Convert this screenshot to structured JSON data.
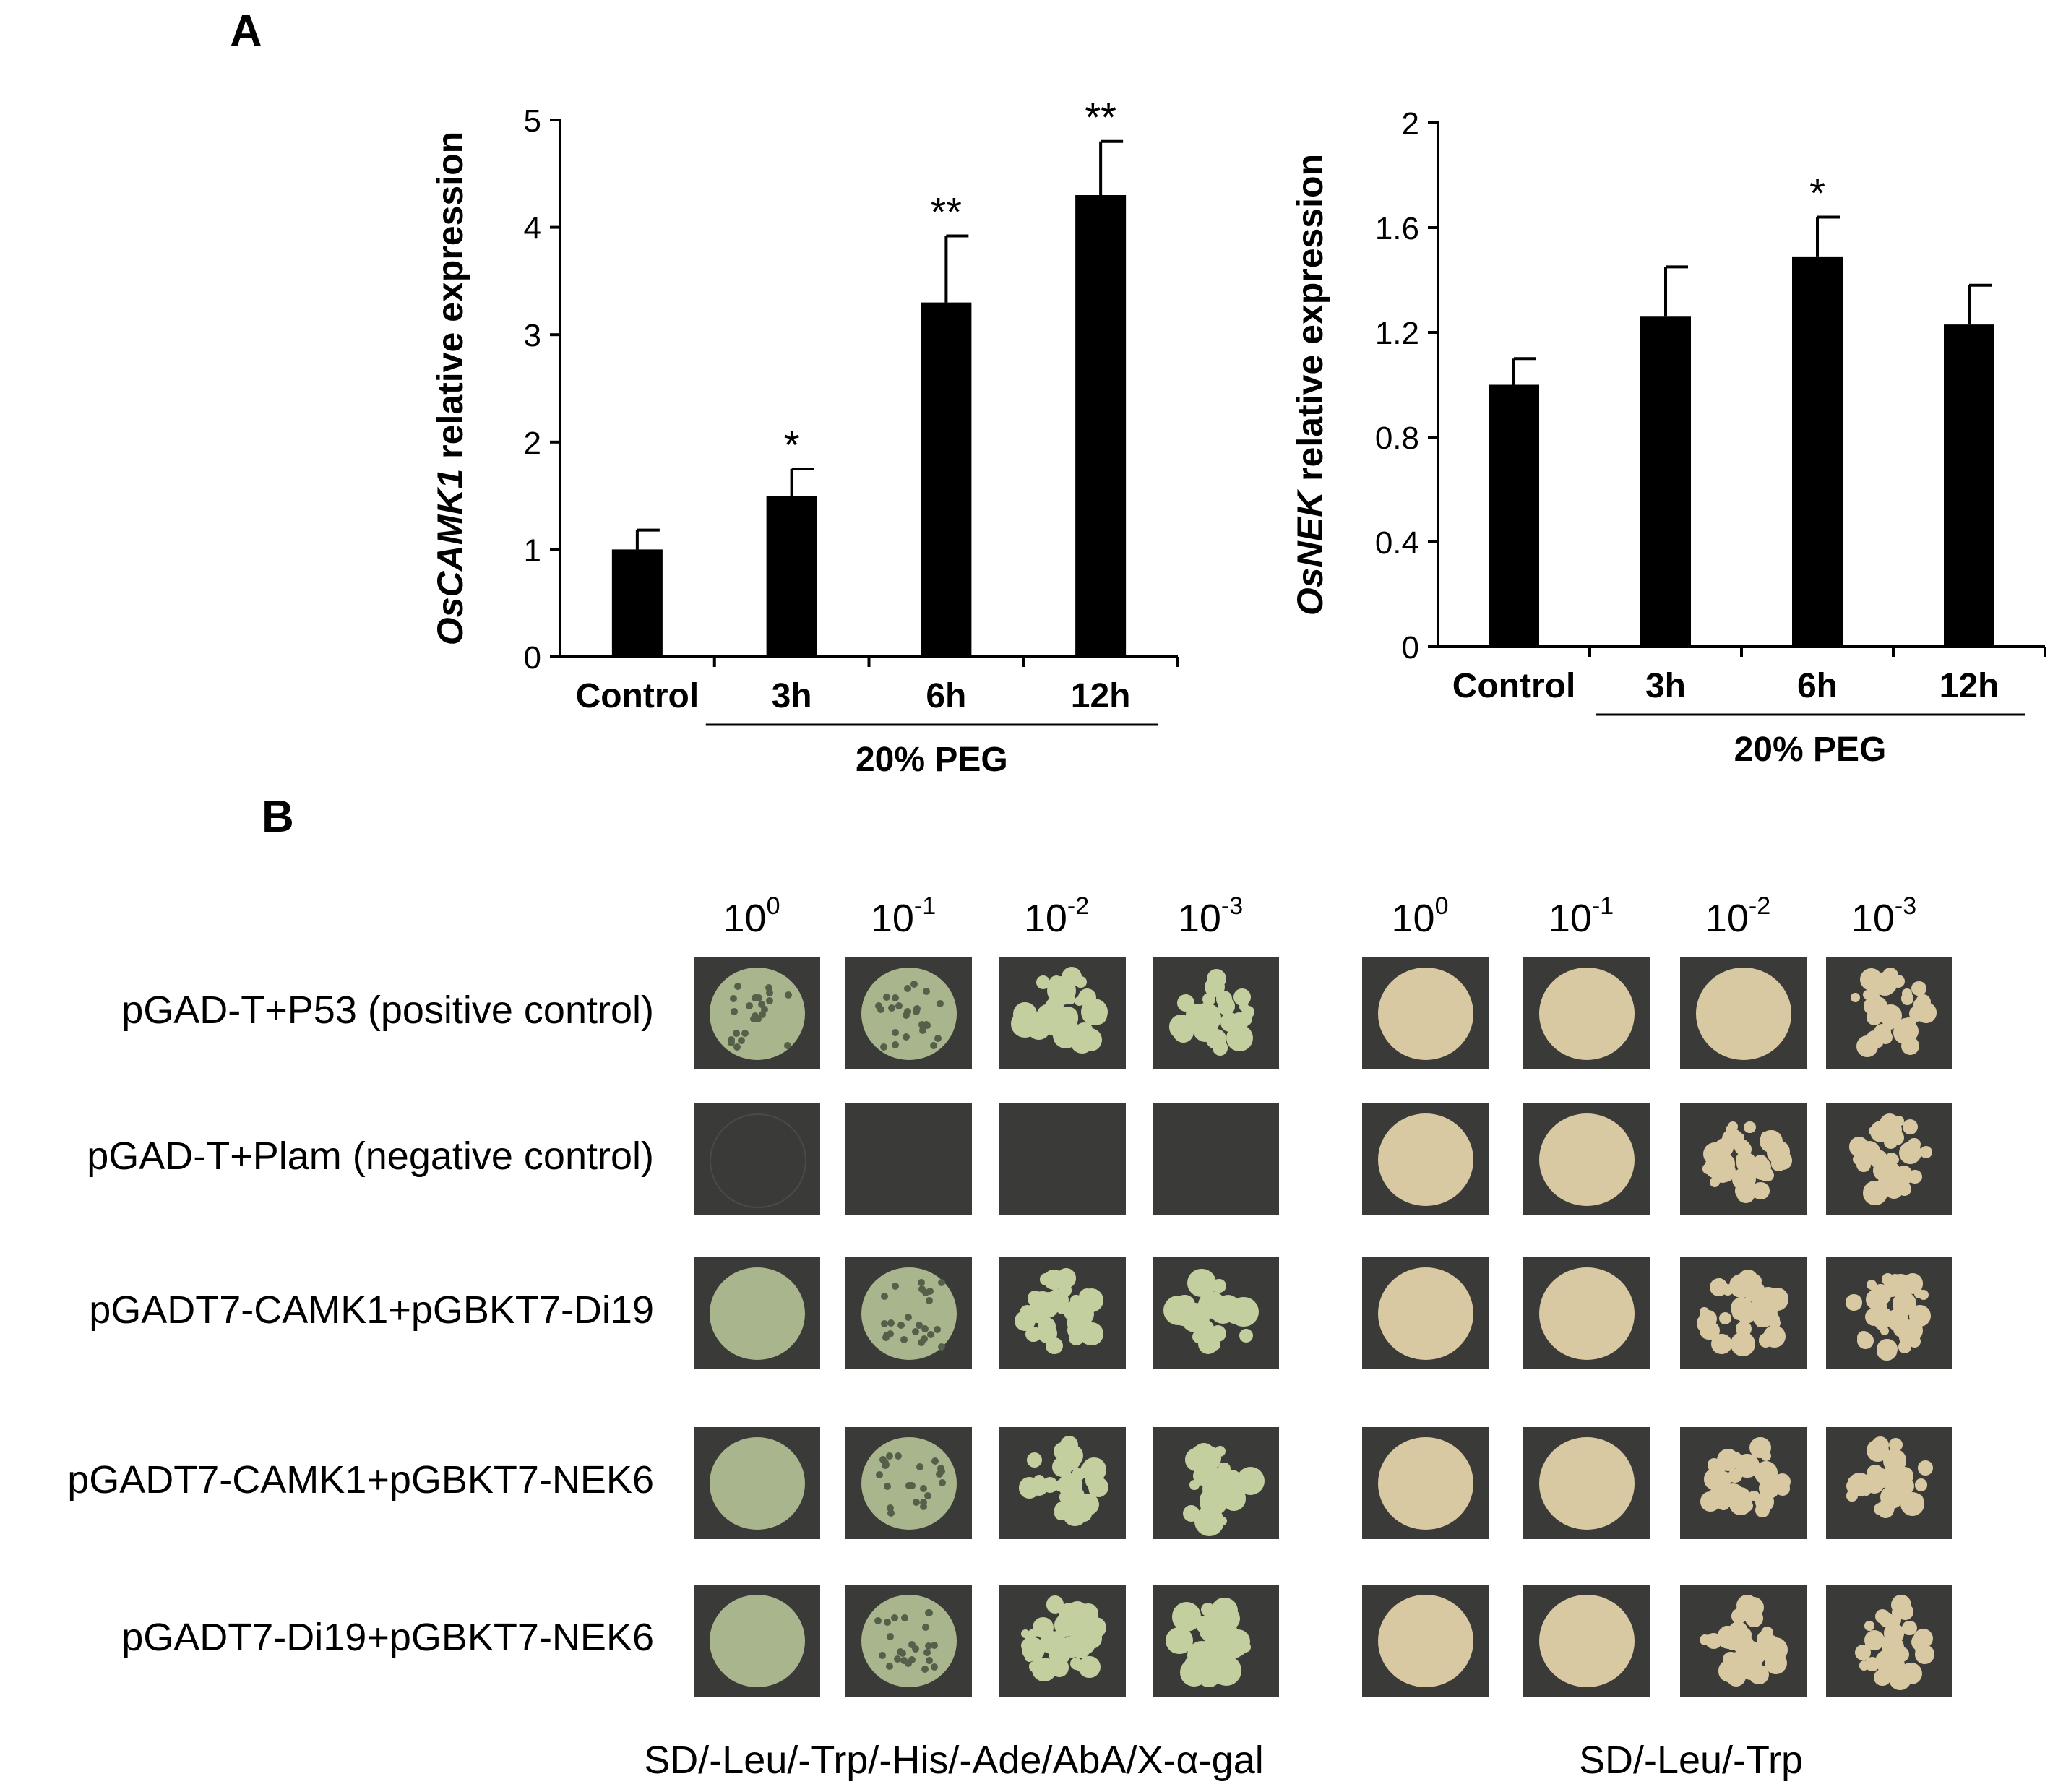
{
  "panels": {
    "a": "A",
    "b": "B"
  },
  "chart_data": [
    {
      "type": "bar",
      "ylabel_italic": "OsCAMK1",
      "ylabel_rest": " relative expression",
      "categories": [
        "Control",
        "3h",
        "6h",
        "12h"
      ],
      "values": [
        1.0,
        1.5,
        3.3,
        4.3
      ],
      "errors": [
        0.18,
        0.25,
        0.62,
        0.5
      ],
      "significance": [
        "",
        "*",
        "**",
        "**"
      ],
      "ylim": [
        0,
        5
      ],
      "yticks": [
        "0",
        "1",
        "2",
        "3",
        "4",
        "5"
      ],
      "group_label": "20% PEG",
      "group_start_index": 1
    },
    {
      "type": "bar",
      "ylabel_italic": "OsNEK",
      "ylabel_rest": " relative expression",
      "categories": [
        "Control",
        "3h",
        "6h",
        "12h"
      ],
      "values": [
        1.0,
        1.26,
        1.49,
        1.23
      ],
      "errors": [
        0.1,
        0.19,
        0.15,
        0.15
      ],
      "significance": [
        "",
        "",
        "*",
        ""
      ],
      "ylim": [
        0,
        2
      ],
      "yticks": [
        "0",
        "0.4",
        "0.8",
        "1.2",
        "1.6",
        "2"
      ],
      "group_label": "20% PEG",
      "group_start_index": 1
    }
  ],
  "assay": {
    "dilutions": [
      {
        "base": "10",
        "exp": "0"
      },
      {
        "base": "10",
        "exp": "-1"
      },
      {
        "base": "10",
        "exp": "-2"
      },
      {
        "base": "10",
        "exp": "-3"
      }
    ],
    "rows": [
      "pGAD-T+P53 (positive control)",
      "pGAD-T+Plam (negative control)",
      "pGADT7-CAMK1+pGBKT7-Di19",
      "pGADT7-CAMK1+pGBKT7-NEK6",
      "pGADT7-Di19+pGBKT7-NEK6"
    ],
    "media": [
      "SD/-Leu/-Trp/-His/-Ade/AbA/X-α-gal",
      "SD/-Leu/-Trp"
    ]
  }
}
